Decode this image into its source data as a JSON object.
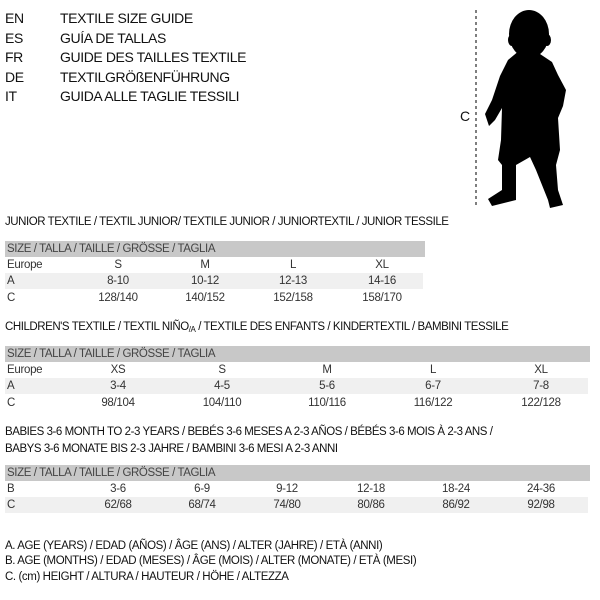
{
  "languages": [
    {
      "code": "EN",
      "title": "TEXTILE SIZE GUIDE"
    },
    {
      "code": "ES",
      "title": "GUÍA DE TALLAS"
    },
    {
      "code": "FR",
      "title": "GUIDE DES TAILLES TEXTILE"
    },
    {
      "code": "DE",
      "title": "TEXTILGRÖßENFÜHRUNG"
    },
    {
      "code": "IT",
      "title": "GUIDA ALLE TAGLIE TESSILI"
    }
  ],
  "figure": {
    "measure_label": "C",
    "icon": "child-silhouette"
  },
  "junior": {
    "title": "JUNIOR TEXTILE / TEXTIL JUNIOR/ TEXTILE JUNIOR / JUNIORTEXTIL / JUNIOR TESSILE",
    "header": "SIZE / TALLA / TAILLE / GRÖSSE / TAGLIA",
    "rows": [
      {
        "label": "Europe",
        "values": [
          "S",
          "M",
          "L",
          "XL"
        ]
      },
      {
        "label": "A",
        "values": [
          "8-10",
          "10-12",
          "12-13",
          "14-16"
        ]
      },
      {
        "label": "C",
        "values": [
          "128/140",
          "140/152",
          "152/158",
          "158/170"
        ]
      }
    ]
  },
  "children": {
    "title_pre": "CHILDREN'S TEXTILE / TEXTIL NIÑO",
    "title_sub": "/A",
    "title_post": " / TEXTILE DES ENFANTS / KINDERTEXTIL / BAMBINI TESSILE",
    "header": "SIZE / TALLA / TAILLE / GRÖSSE / TAGLIA",
    "rows": [
      {
        "label": "Europe",
        "values": [
          "XS",
          "S",
          "M",
          "L",
          "XL"
        ]
      },
      {
        "label": "A",
        "values": [
          "3-4",
          "4-5",
          "5-6",
          "6-7",
          "7-8"
        ]
      },
      {
        "label": "C",
        "values": [
          "98/104",
          "104/110",
          "110/116",
          "116/122",
          "122/128"
        ]
      }
    ]
  },
  "babies": {
    "title_line1": "BABIES 3-6 MONTH TO 2-3 YEARS / BEBÉS 3-6 MESES A 2-3 AÑOS / BÉBÉS 3-6 MOIS À 2-3 ANS /",
    "title_line2": "BABYS 3-6 MONATE BIS 2-3 JAHRE / BAMBINI 3-6 MESI A 2-3 ANNI",
    "header": "SIZE / TALLA / TAILLE / GRÖSSE / TAGLIA",
    "rows": [
      {
        "label": "B",
        "values": [
          "3-6",
          "6-9",
          "9-12",
          "12-18",
          "18-24",
          "24-36"
        ]
      },
      {
        "label": "C",
        "values": [
          "62/68",
          "68/74",
          "74/80",
          "80/86",
          "86/92",
          "92/98"
        ]
      }
    ]
  },
  "legend": [
    "A. AGE (YEARS) / EDAD (AÑOS) / ÂGE (ANS) / ALTER (JAHRE) / ETÀ (ANNI)",
    "B. AGE (MONTHS) / EDAD (MESES) / ÂGE (MOIS) / ALTER (MONATE) / ETÀ (MESI)",
    "C. (cm) HEIGHT / ALTURA / HAUTEUR / HÖHE / ALTEZZA"
  ]
}
